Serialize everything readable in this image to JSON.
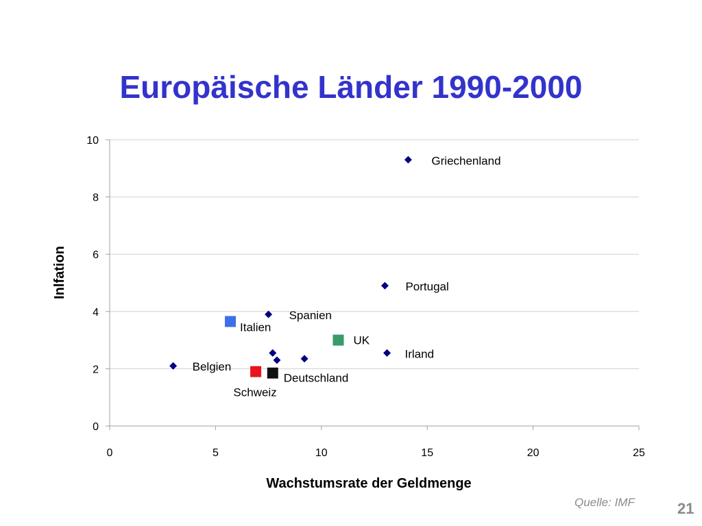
{
  "page": {
    "title": "Europäische Länder 1990-2000",
    "source": "Quelle: IMF",
    "page_number": "21"
  },
  "chart_data": {
    "type": "scatter",
    "title": "Europäische Länder 1990-2000",
    "xlabel": "Wachstumsrate der Geldmenge",
    "ylabel": "Inlfation",
    "xlim": [
      0,
      25
    ],
    "ylim": [
      0,
      10
    ],
    "x_ticks": [
      0,
      5,
      10,
      15,
      20,
      25
    ],
    "y_ticks": [
      0,
      2,
      4,
      6,
      8,
      10
    ],
    "grid": "horizontal",
    "legend": "none",
    "colors": {
      "default_marker": "#000080",
      "Italien": "#3d6fe8",
      "UK": "#3a9a6a",
      "Schweiz": "#e8141b",
      "Deutschland": "#111111"
    },
    "points": [
      {
        "x": 14.1,
        "y": 9.3,
        "label": "Griechenland",
        "marker": "diamond",
        "color": "#000080"
      },
      {
        "x": 13.0,
        "y": 4.9,
        "label": "Portugal",
        "marker": "diamond",
        "color": "#000080"
      },
      {
        "x": 7.5,
        "y": 3.9,
        "label": "Spanien",
        "marker": "diamond",
        "color": "#000080"
      },
      {
        "x": 13.1,
        "y": 2.55,
        "label": "Irland",
        "marker": "diamond",
        "color": "#000080"
      },
      {
        "x": 3.0,
        "y": 2.1,
        "label": "Belgien",
        "marker": "diamond",
        "color": "#000080"
      },
      {
        "x": 7.7,
        "y": 2.55,
        "label": "",
        "marker": "diamond",
        "color": "#000080"
      },
      {
        "x": 7.9,
        "y": 2.3,
        "label": "",
        "marker": "diamond",
        "color": "#000080"
      },
      {
        "x": 9.2,
        "y": 2.35,
        "label": "",
        "marker": "diamond",
        "color": "#000080"
      },
      {
        "x": 5.7,
        "y": 3.65,
        "label": "Italien",
        "marker": "square",
        "color": "#3d6fe8"
      },
      {
        "x": 10.8,
        "y": 3.0,
        "label": "UK",
        "marker": "square",
        "color": "#3a9a6a"
      },
      {
        "x": 6.9,
        "y": 1.9,
        "label": "Schweiz",
        "marker": "square",
        "color": "#e8141b"
      },
      {
        "x": 7.7,
        "y": 1.85,
        "label": "Deutschland",
        "marker": "square",
        "color": "#111111"
      }
    ]
  }
}
